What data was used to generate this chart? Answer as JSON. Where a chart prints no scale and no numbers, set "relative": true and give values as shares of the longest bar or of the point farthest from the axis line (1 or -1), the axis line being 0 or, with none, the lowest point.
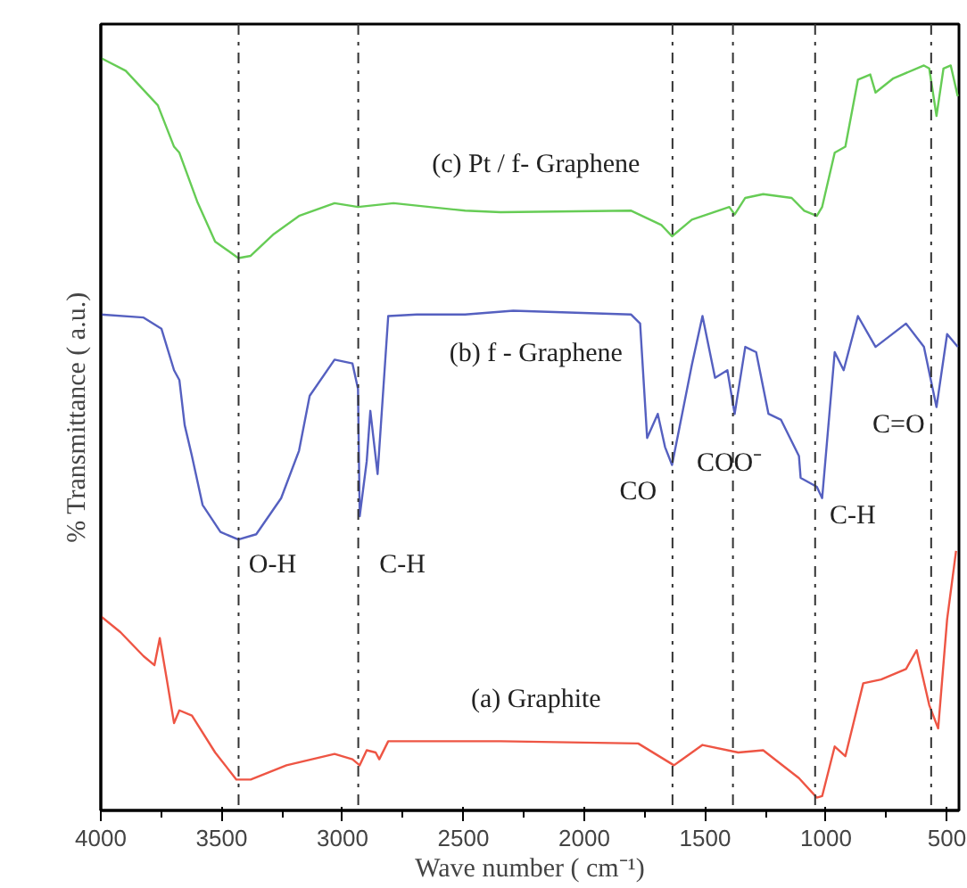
{
  "chart_data": {
    "type": "line",
    "relative": true,
    "xlabel": "Wave number ( cm⁻¹)",
    "ylabel": "% Transmittance ( a.u.)",
    "xlim": [
      4000,
      450
    ],
    "xticks": [
      4000,
      3500,
      3000,
      2500,
      2000,
      1500,
      1000,
      500
    ],
    "grid": false,
    "line_style": "solid",
    "marker": "none",
    "series": [
      {
        "name": "(c) Pt / f- Graphene",
        "color": "#66cc55",
        "x": [
          4000,
          3897,
          3764,
          3697,
          3675,
          3601,
          3527,
          3431,
          3380,
          3284,
          3180,
          3033,
          2936,
          2789,
          2493,
          2346,
          1806,
          1681,
          1637,
          1555,
          1400,
          1378,
          1334,
          1260,
          1142,
          1090,
          1038,
          1016,
          964,
          920,
          868,
          817,
          795,
          721,
          595,
          573,
          543,
          514,
          484,
          455
        ],
        "values": [
          1.0,
          0.983,
          0.937,
          0.882,
          0.874,
          0.809,
          0.756,
          0.734,
          0.737,
          0.766,
          0.79,
          0.807,
          0.802,
          0.807,
          0.797,
          0.795,
          0.797,
          0.778,
          0.763,
          0.785,
          0.802,
          0.792,
          0.814,
          0.819,
          0.814,
          0.797,
          0.79,
          0.802,
          0.874,
          0.882,
          0.971,
          0.978,
          0.954,
          0.973,
          0.99,
          0.986,
          0.923,
          0.986,
          0.99,
          0.949
        ]
      },
      {
        "name": "(b) f - Graphene",
        "color": "#5560c0",
        "x": [
          4000,
          3823,
          3749,
          3697,
          3675,
          3653,
          3623,
          3579,
          3505,
          3431,
          3357,
          3254,
          3180,
          3136,
          3033,
          2959,
          2936,
          2929,
          2900,
          2885,
          2855,
          2811,
          2693,
          2493,
          2294,
          1806,
          1769,
          1740,
          1696,
          1666,
          1637,
          1555,
          1511,
          1459,
          1408,
          1378,
          1334,
          1289,
          1238,
          1186,
          1112,
          1105,
          1038,
          1016,
          964,
          927,
          868,
          795,
          669,
          595,
          543,
          499,
          455
        ],
        "values": [
          0.659,
          0.655,
          0.64,
          0.585,
          0.572,
          0.512,
          0.471,
          0.406,
          0.37,
          0.36,
          0.367,
          0.415,
          0.478,
          0.551,
          0.599,
          0.594,
          0.56,
          0.391,
          0.464,
          0.531,
          0.447,
          0.657,
          0.659,
          0.659,
          0.664,
          0.659,
          0.647,
          0.495,
          0.527,
          0.483,
          0.459,
          0.592,
          0.657,
          0.575,
          0.585,
          0.527,
          0.616,
          0.609,
          0.527,
          0.519,
          0.471,
          0.442,
          0.43,
          0.415,
          0.609,
          0.585,
          0.657,
          0.616,
          0.647,
          0.616,
          0.536,
          0.633,
          0.616
        ]
      },
      {
        "name": "(a) Graphite",
        "color": "#ee5544",
        "x": [
          4000,
          3919,
          3823,
          3778,
          3756,
          3727,
          3697,
          3675,
          3623,
          3527,
          3439,
          3380,
          3232,
          3033,
          2959,
          2929,
          2900,
          2863,
          2848,
          2811,
          2493,
          2346,
          1777,
          1629,
          1511,
          1363,
          1260,
          1112,
          1038,
          1016,
          964,
          920,
          846,
          772,
          669,
          625,
          573,
          536,
          499,
          462
        ],
        "values": [
          0.258,
          0.237,
          0.205,
          0.193,
          0.229,
          0.174,
          0.116,
          0.133,
          0.126,
          0.077,
          0.041,
          0.041,
          0.06,
          0.075,
          0.068,
          0.06,
          0.08,
          0.077,
          0.068,
          0.092,
          0.092,
          0.092,
          0.089,
          0.06,
          0.087,
          0.077,
          0.08,
          0.043,
          0.017,
          0.019,
          0.085,
          0.072,
          0.169,
          0.174,
          0.188,
          0.213,
          0.14,
          0.109,
          0.254,
          0.345
        ]
      }
    ],
    "ref_lines": [
      {
        "axis": "x",
        "value": 3430,
        "label": "O-H",
        "color": "#333333",
        "line_style": "dashdot"
      },
      {
        "axis": "x",
        "value": 2935,
        "label": "C-H",
        "color": "#333333",
        "line_style": "dashdot"
      },
      {
        "axis": "x",
        "value": 1635,
        "label": "CO",
        "color": "#333333",
        "line_style": "dashdot"
      },
      {
        "axis": "x",
        "value": 1385,
        "label": "COO⁻",
        "color": "#333333",
        "line_style": "dashdot"
      },
      {
        "axis": "x",
        "value": 1045,
        "label": "C-H",
        "color": "#333333",
        "line_style": "dashdot"
      },
      {
        "axis": "x",
        "value": 565,
        "label": "C=O",
        "color": "#333333",
        "line_style": "dashdot"
      }
    ]
  }
}
